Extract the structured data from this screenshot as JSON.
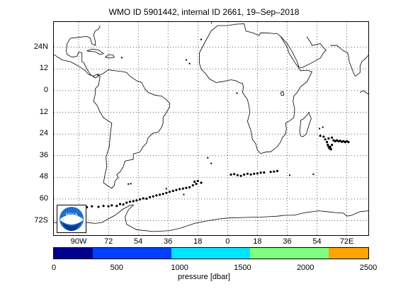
{
  "title": "WMO ID 5901442, internal ID 2661, 19–Sep–2018",
  "map": {
    "projection": "equirectangular",
    "lon_range": [
      -105,
      85
    ],
    "lat_range": [
      -80,
      38
    ],
    "y_ticks": [
      {
        "lat": 24,
        "label": "24N"
      },
      {
        "lat": 12,
        "label": "12"
      },
      {
        "lat": 0,
        "label": "0"
      },
      {
        "lat": -12,
        "label": "12"
      },
      {
        "lat": -24,
        "label": "24"
      },
      {
        "lat": -36,
        "label": "36"
      },
      {
        "lat": -48,
        "label": "48"
      },
      {
        "lat": -60,
        "label": "60"
      },
      {
        "lat": -72,
        "label": "72S"
      }
    ],
    "x_ticks": [
      {
        "lon": -90,
        "label": "90W"
      },
      {
        "lon": -72,
        "label": "72"
      },
      {
        "lon": -54,
        "label": "54"
      },
      {
        "lon": -36,
        "label": "36"
      },
      {
        "lon": -18,
        "label": "18"
      },
      {
        "lon": 0,
        "label": "0"
      },
      {
        "lon": 18,
        "label": "18"
      },
      {
        "lon": 36,
        "label": "36"
      },
      {
        "lon": 54,
        "label": "54"
      },
      {
        "lon": 72,
        "label": "72E"
      }
    ],
    "grid": "dotted",
    "coastline_color": "#000000",
    "track_color": "#000000",
    "noaa_logo_text": "NOAA",
    "float_track": [
      [
        -87,
        -64
      ],
      [
        -85,
        -64.5
      ],
      [
        -82,
        -64
      ],
      [
        -78,
        -64.3
      ],
      [
        -75,
        -63.8
      ],
      [
        -72,
        -64
      ],
      [
        -70,
        -63.5
      ],
      [
        -67,
        -63.8
      ],
      [
        -65,
        -62.8
      ],
      [
        -63,
        -63
      ],
      [
        -61,
        -62
      ],
      [
        -59,
        -61.5
      ],
      [
        -57,
        -61.2
      ],
      [
        -55,
        -60.8
      ],
      [
        -53,
        -60.2
      ],
      [
        -51,
        -59.6
      ],
      [
        -49,
        -59.8
      ],
      [
        -47,
        -59
      ],
      [
        -45,
        -58.5
      ],
      [
        -43,
        -58
      ],
      [
        -41,
        -57.6
      ],
      [
        -39,
        -57.2
      ],
      [
        -37,
        -56.6
      ],
      [
        -35,
        -56
      ],
      [
        -33,
        -55.5
      ],
      [
        -31,
        -55
      ],
      [
        -29,
        -54.5
      ],
      [
        -27,
        -54.2
      ],
      [
        -25,
        -53.8
      ],
      [
        -23,
        -53.5
      ],
      [
        -21,
        -52.4
      ],
      [
        -19,
        -51.6
      ],
      [
        -20,
        -50.4
      ],
      [
        -18,
        -50
      ],
      [
        -16,
        -51
      ],
      [
        2,
        -46.5
      ],
      [
        4,
        -46.2
      ],
      [
        6,
        -46.8
      ],
      [
        8,
        -47.2
      ],
      [
        10,
        -46.5
      ],
      [
        12,
        -46
      ],
      [
        14,
        -46.4
      ],
      [
        16,
        -46
      ],
      [
        18,
        -45.8
      ],
      [
        20,
        -45.4
      ],
      [
        22,
        -45.3
      ],
      [
        26,
        -45
      ],
      [
        28,
        -44.8
      ],
      [
        30,
        -44.5
      ],
      [
        56,
        -25
      ],
      [
        58,
        -25.5
      ],
      [
        59,
        -27
      ],
      [
        61,
        -26.5
      ],
      [
        63,
        -26
      ],
      [
        64,
        -27.5
      ],
      [
        65,
        -28
      ],
      [
        66,
        -27.5
      ],
      [
        67,
        -28
      ],
      [
        68,
        -27.8
      ],
      [
        69,
        -28.3
      ],
      [
        70,
        -28
      ],
      [
        71,
        -28.5
      ],
      [
        72,
        -28
      ],
      [
        73,
        -28.5
      ],
      [
        60,
        -28.5
      ],
      [
        60.5,
        -30
      ],
      [
        61,
        -31
      ],
      [
        61.5,
        -32
      ],
      [
        62,
        -31.2
      ],
      [
        63,
        -30
      ],
      [
        62.5,
        -32.5
      ]
    ]
  },
  "colorbar": {
    "label": "pressure [dbar]",
    "min": 0,
    "max": 2500,
    "tick_values": [
      0,
      500,
      1000,
      1500,
      2000,
      2500
    ],
    "tick_labels": [
      "0",
      "500",
      "1000",
      "1500",
      "2000",
      "2500"
    ],
    "segments": [
      {
        "from": 0,
        "to": 312,
        "color": "#00008f"
      },
      {
        "from": 312,
        "to": 937,
        "color": "#0040ff"
      },
      {
        "from": 937,
        "to": 1562,
        "color": "#00e5ff"
      },
      {
        "from": 1562,
        "to": 2187,
        "color": "#80ff80"
      },
      {
        "from": 2187,
        "to": 2500,
        "color": "#ffa500"
      }
    ]
  }
}
